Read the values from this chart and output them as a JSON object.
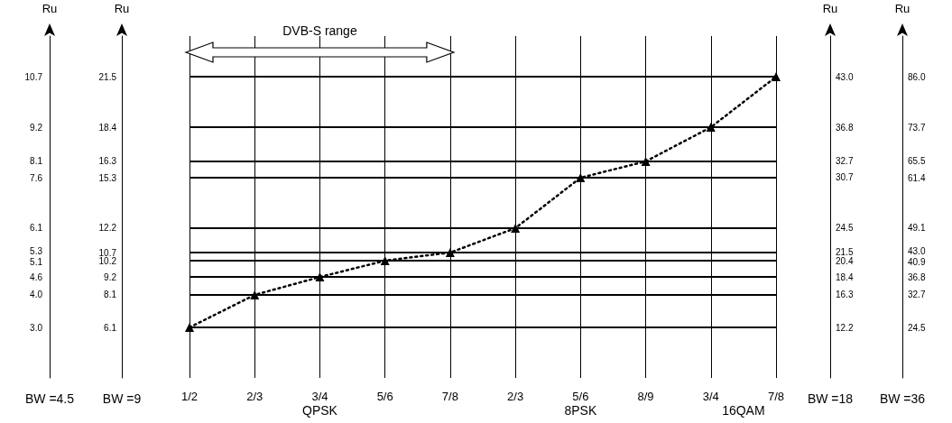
{
  "chart_data": {
    "type": "line",
    "categories": [
      "1/2",
      "2/3",
      "3/4",
      "5/6",
      "7/8",
      "2/3",
      "5/6",
      "8/9",
      "3/4",
      "7/8"
    ],
    "series": [
      {
        "color": "#000000",
        "values": [
          6.1,
          8.1,
          9.2,
          10.2,
          10.7,
          12.2,
          15.3,
          16.3,
          18.4,
          21.5
        ]
      }
    ],
    "marker": "triangle",
    "line_style": "dotted",
    "grid": true,
    "ylabel": "Ru",
    "y2label": "Ru",
    "ylim": [
      3,
      24
    ],
    "yticks": [
      6.1,
      8.1,
      9.2,
      10.2,
      10.7,
      12.2,
      15.3,
      16.3,
      18.4,
      21.5
    ],
    "y2lim": [
      6,
      48
    ],
    "y2ticks": [
      12.2,
      16.3,
      18.4,
      20.4,
      21.5,
      24.5,
      30.7,
      32.7,
      36.8,
      {
        "value": 43,
        "label": "43.0"
      }
    ],
    "annotations": [
      "DVB-S range",
      "QPSK",
      "8PSK",
      "16QAM",
      "BW =4.5",
      "BW =9",
      "BW =18",
      "BW =36",
      "Ru",
      "3.0",
      "4.0",
      "4.6",
      "5.1",
      "5.3",
      "6.1",
      "7.6",
      "8.1",
      "9.2",
      "10.7",
      "Ru",
      "24.5",
      "32.7",
      "36.8",
      "40.9",
      "43.0",
      "49.1",
      "61.4",
      "65.5",
      "73.7",
      "86.0"
    ]
  }
}
